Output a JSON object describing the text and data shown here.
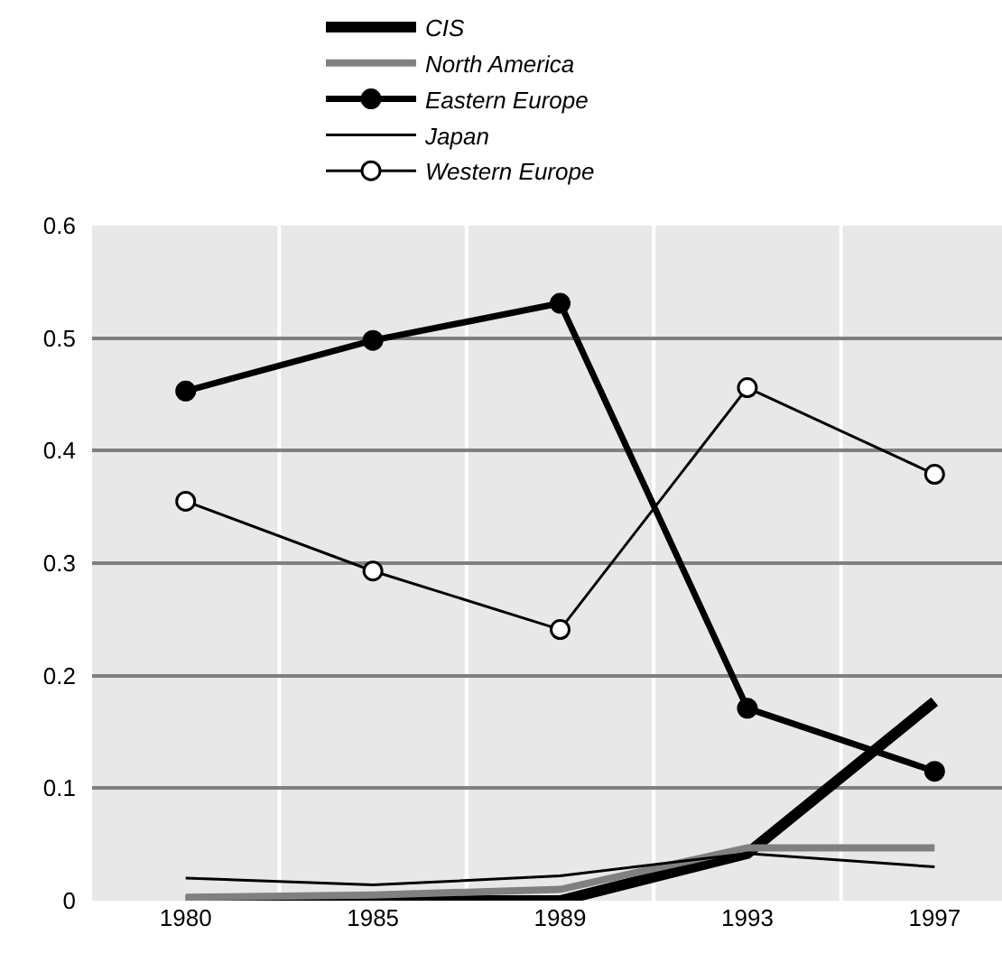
{
  "chart_data": {
    "type": "line",
    "categories": [
      "1980",
      "1985",
      "1989",
      "1993",
      "1997"
    ],
    "series": [
      {
        "name": "CIS",
        "color": "#000000",
        "values": [
          0,
          0,
          0,
          0.042,
          0.177
        ],
        "marker": "none"
      },
      {
        "name": "North America",
        "color": "#808080",
        "values": [
          0.003,
          0.005,
          0.01,
          0.047,
          0.047
        ],
        "marker": "none"
      },
      {
        "name": "Eastern Europe",
        "color": "#000000",
        "values": [
          0.453,
          0.498,
          0.531,
          0.171,
          0.115
        ],
        "marker": "circle"
      },
      {
        "name": "Japan",
        "color": "#000000",
        "values": [
          0.02,
          0.014,
          0.022,
          0.042,
          0.03
        ],
        "marker": "none"
      },
      {
        "name": "Western Europe",
        "color": "#000000",
        "values": [
          0.355,
          0.293,
          0.241,
          0.456,
          0.379
        ],
        "marker": "circle"
      }
    ],
    "ylim": [
      0,
      0.6
    ],
    "yticks": [
      0,
      0.1,
      0.2,
      0.3,
      0.4,
      0.5,
      0.6
    ],
    "grid": true,
    "legend": "top",
    "line_style": "solid"
  }
}
